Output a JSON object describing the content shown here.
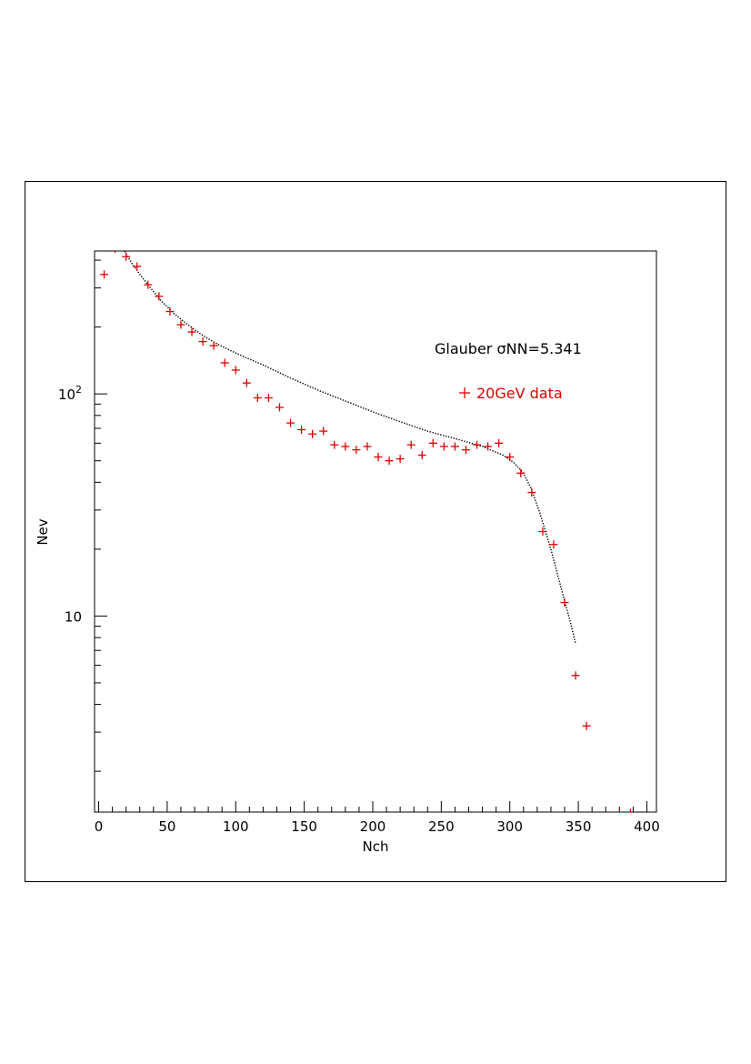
{
  "chart_data": {
    "type": "scatter",
    "xlabel": "Nch",
    "ylabel": "Nev",
    "xlim": [
      -3,
      407
    ],
    "ylim": [
      1.31,
      440
    ],
    "yscale": "log",
    "grid": false,
    "x_ticks": [
      0,
      50,
      100,
      150,
      200,
      250,
      300,
      350,
      400
    ],
    "x_tick_labels": [
      "0",
      "50",
      "100",
      "150",
      "200",
      "250",
      "300",
      "350",
      "400"
    ],
    "y_ticks": [
      10,
      100
    ],
    "y_tick_labels": [
      "10",
      "10²"
    ],
    "legend": {
      "placement": "top-right",
      "entries": [
        {
          "label": "Glauber σNN=5.341",
          "color": "#000000",
          "marker": "dotted-line"
        },
        {
          "label": "20GeV data",
          "color": "#dd0000",
          "marker": "+"
        }
      ]
    },
    "series": [
      {
        "name": "20GeV data",
        "color": "#dd0000",
        "marker": "+",
        "x": [
          4,
          12,
          20,
          28,
          36,
          44,
          52,
          60,
          68,
          76,
          84,
          92,
          100,
          108,
          116,
          124,
          132,
          140,
          148,
          156,
          164,
          172,
          180,
          188,
          196,
          204,
          212,
          220,
          228,
          236,
          244,
          252,
          260,
          268,
          276,
          284,
          292,
          300,
          308,
          316,
          324,
          332,
          340,
          348,
          356,
          380,
          388
        ],
        "y": [
          345,
          450,
          415,
          375,
          310,
          275,
          235,
          205,
          190,
          172,
          165,
          138,
          128,
          112,
          96,
          96,
          87,
          74,
          69,
          66,
          68,
          59,
          58,
          56,
          58,
          52,
          50,
          51,
          59,
          53,
          60,
          58,
          58,
          56,
          59,
          58,
          60,
          52,
          44,
          36,
          24,
          21,
          11.5,
          5.4,
          3.2,
          1.3,
          1.3
        ]
      },
      {
        "name": "Glauber σNN=5.341",
        "color": "#000000",
        "line": "dotted",
        "x": [
          18,
          25,
          35,
          45,
          55,
          65,
          75,
          85,
          95,
          105,
          120,
          140,
          160,
          180,
          200,
          220,
          240,
          260,
          280,
          295,
          303,
          310,
          316,
          322,
          330,
          338,
          344,
          348
        ],
        "y": [
          450,
          380,
          315,
          265,
          230,
          205,
          185,
          170,
          158,
          148,
          135,
          118,
          104,
          93,
          83,
          75,
          68,
          63,
          58,
          53,
          49,
          44,
          37,
          29,
          20,
          13,
          9.5,
          7.5
        ]
      }
    ]
  }
}
